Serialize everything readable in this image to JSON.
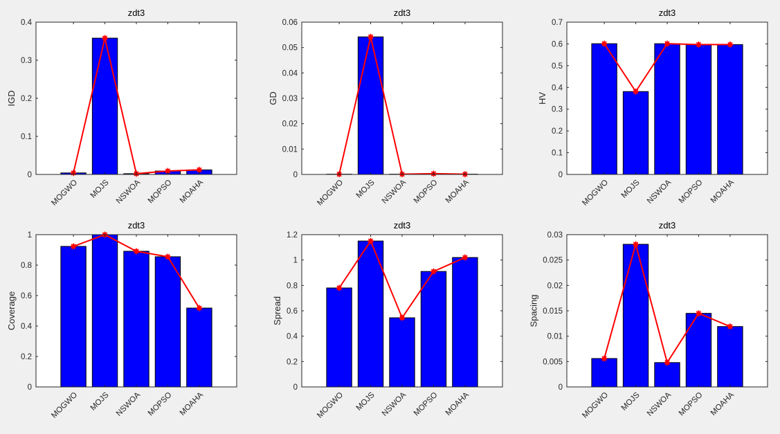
{
  "figure": {
    "background": "#f0f0f0",
    "bar_color": "#0000ff",
    "line_color": "#ff0000"
  },
  "chart_data": [
    {
      "type": "bar",
      "overlay": "line",
      "title": "zdt3",
      "xlabel": "",
      "ylabel": "IGD",
      "categories": [
        "MOGWO",
        "MOJS",
        "NSWOA",
        "MOPSO",
        "MOAHA"
      ],
      "values": [
        0.004,
        0.358,
        0.002,
        0.009,
        0.012
      ],
      "ylim": [
        0,
        0.4
      ],
      "yticks": [
        0,
        0.1,
        0.2,
        0.3,
        0.4
      ],
      "ytick_labels": [
        "0",
        "0.1",
        "0.2",
        "0.3",
        "0.4"
      ],
      "grid": false
    },
    {
      "type": "bar",
      "overlay": "line",
      "title": "zdt3",
      "xlabel": "",
      "ylabel": "GD",
      "categories": [
        "MOGWO",
        "MOJS",
        "NSWOA",
        "MOPSO",
        "MOAHA"
      ],
      "values": [
        0.0001,
        0.0542,
        0.0001,
        0.0003,
        0.0001
      ],
      "ylim": [
        0,
        0.06
      ],
      "yticks": [
        0,
        0.01,
        0.02,
        0.03,
        0.04,
        0.05,
        0.06
      ],
      "ytick_labels": [
        "0",
        "0.01",
        "0.02",
        "0.03",
        "0.04",
        "0.05",
        "0.06"
      ],
      "grid": false
    },
    {
      "type": "bar",
      "overlay": "line",
      "title": "zdt3",
      "xlabel": "",
      "ylabel": "HV",
      "categories": [
        "MOGWO",
        "MOJS",
        "NSWOA",
        "MOPSO",
        "MOAHA"
      ],
      "values": [
        0.601,
        0.381,
        0.601,
        0.597,
        0.597
      ],
      "ylim": [
        0,
        0.7
      ],
      "yticks": [
        0,
        0.1,
        0.2,
        0.3,
        0.4,
        0.5,
        0.6,
        0.7
      ],
      "ytick_labels": [
        "0",
        "0.1",
        "0.2",
        "0.3",
        "0.4",
        "0.5",
        "0.6",
        "0.7"
      ],
      "grid": false
    },
    {
      "type": "bar",
      "overlay": "line",
      "title": "zdt3",
      "xlabel": "",
      "ylabel": "Coverage",
      "categories": [
        "MOGWO",
        "MOJS",
        "NSWOA",
        "MOPSO",
        "MOAHA"
      ],
      "values": [
        0.923,
        1.0,
        0.891,
        0.855,
        0.518
      ],
      "ylim": [
        0,
        1
      ],
      "yticks": [
        0,
        0.2,
        0.4,
        0.6,
        0.8,
        1
      ],
      "ytick_labels": [
        "0",
        "0.2",
        "0.4",
        "0.6",
        "0.8",
        "1"
      ],
      "grid": false
    },
    {
      "type": "bar",
      "overlay": "line",
      "title": "zdt3",
      "xlabel": "",
      "ylabel": "Spread",
      "categories": [
        "MOGWO",
        "MOJS",
        "NSWOA",
        "MOPSO",
        "MOAHA"
      ],
      "values": [
        0.78,
        1.15,
        0.545,
        0.91,
        1.02
      ],
      "ylim": [
        0,
        1.2
      ],
      "yticks": [
        0,
        0.2,
        0.4,
        0.6,
        0.8,
        1,
        1.2
      ],
      "ytick_labels": [
        "0",
        "0.2",
        "0.4",
        "0.6",
        "0.8",
        "1",
        "1.2"
      ],
      "grid": false
    },
    {
      "type": "bar",
      "overlay": "line",
      "title": "zdt3",
      "xlabel": "",
      "ylabel": "Spacing",
      "categories": [
        "MOGWO",
        "MOJS",
        "NSWOA",
        "MOPSO",
        "MOAHA"
      ],
      "values": [
        0.0056,
        0.0281,
        0.0048,
        0.0145,
        0.0119
      ],
      "ylim": [
        0,
        0.03
      ],
      "yticks": [
        0,
        0.005,
        0.01,
        0.015,
        0.02,
        0.025,
        0.03
      ],
      "ytick_labels": [
        "0",
        "0.005",
        "0.01",
        "0.015",
        "0.02",
        "0.025",
        "0.03"
      ],
      "grid": false
    }
  ]
}
